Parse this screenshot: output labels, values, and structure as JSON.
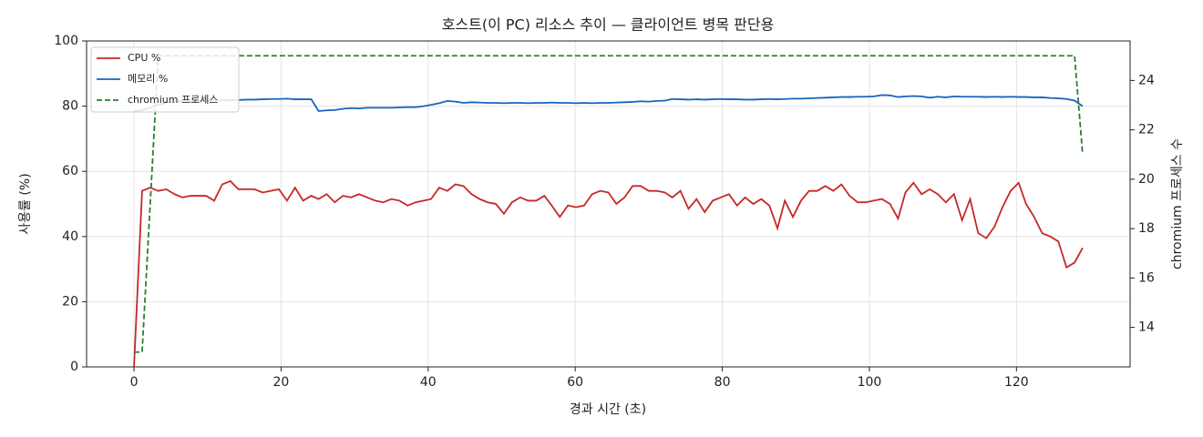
{
  "chart_data": {
    "type": "line",
    "title": "호스트(이 PC) 리소스 추이 — 클라이언트 병목 판단용",
    "xlabel": "경과 시간 (초)",
    "ylabel": "사용률 (%)",
    "y2label": "chromium 프로세스 수",
    "x": [
      0,
      1.1,
      2.2,
      3.3,
      4.4,
      5.5,
      6.6,
      7.7,
      8.7,
      9.8,
      10.9,
      12,
      13.1,
      14.2,
      15.3,
      16.4,
      17.5,
      18.6,
      19.7,
      20.8,
      21.9,
      23,
      24.1,
      25.1,
      26.2,
      27.3,
      28.4,
      29.5,
      30.6,
      31.7,
      32.8,
      33.9,
      35,
      36.1,
      37.2,
      38.3,
      39.4,
      40.4,
      41.5,
      42.6,
      43.7,
      44.8,
      45.9,
      47,
      48.1,
      49.2,
      50.3,
      51.4,
      52.5,
      53.6,
      54.7,
      55.8,
      56.8,
      57.9,
      59,
      60.1,
      61.2,
      62.3,
      63.4,
      64.5,
      65.6,
      66.7,
      67.8,
      68.9,
      70,
      71.1,
      72.2,
      73.2,
      74.3,
      75.4,
      76.5,
      77.6,
      78.7,
      79.8,
      80.9,
      82,
      83.1,
      84.2,
      85.3,
      86.4,
      87.5,
      88.5,
      89.6,
      90.7,
      91.8,
      92.9,
      94,
      95.1,
      96.2,
      97.3,
      98.4,
      99.5,
      100.6,
      101.7,
      102.8,
      103.9,
      104.9,
      106,
      107.1,
      108.2,
      109.3,
      110.4,
      111.5,
      112.6,
      113.7,
      114.8,
      115.9,
      117,
      118.1,
      119.2,
      120.3,
      121.3,
      122.4,
      123.5,
      124.6,
      125.7,
      126.8,
      127.9,
      129
    ],
    "series": [
      {
        "name": "CPU %",
        "color": "#c62828",
        "linestyle": "solid",
        "values": [
          0,
          54,
          55,
          54,
          54.5,
          53,
          52,
          52.5,
          52.5,
          52.5,
          51,
          56,
          57,
          54.5,
          54.5,
          54.5,
          53.5,
          54,
          54.5,
          51,
          55,
          51,
          52.5,
          51.5,
          53,
          50.5,
          52.5,
          52,
          53,
          52,
          51,
          50.5,
          51.5,
          51,
          49.5,
          50.5,
          51,
          51.5,
          55,
          54,
          56,
          55.5,
          53,
          51.5,
          50.5,
          50,
          47,
          50.5,
          52,
          51,
          51,
          52.5,
          49.5,
          46,
          49.5,
          49,
          49.5,
          53,
          54,
          53.5,
          50,
          52,
          55.5,
          55.5,
          54,
          54,
          53.5,
          52,
          54,
          48.5,
          51.5,
          47.5,
          51,
          52,
          53,
          49.5,
          52,
          50,
          51.5,
          49.5,
          42.5,
          51,
          46,
          51,
          54,
          54,
          55.5,
          54,
          56,
          52.5,
          50.5,
          50.5,
          51,
          51.5,
          50,
          45.5,
          53.5,
          56.5,
          53,
          54.5,
          53,
          50.5,
          53,
          45,
          51.5,
          41,
          39.5,
          43,
          49,
          54,
          56.5,
          50,
          46,
          41,
          40,
          38.5,
          30.5,
          32,
          36.5
        ]
      },
      {
        "name": "메모리 %",
        "color": "#1565c0",
        "linestyle": "solid",
        "values": [
          78.5,
          78.8,
          79.5,
          80.5,
          81,
          81.3,
          81.5,
          81.5,
          81.5,
          81.6,
          81.7,
          81.8,
          81.8,
          81.9,
          82,
          82,
          82.1,
          82.2,
          82.2,
          82.3,
          82.1,
          82.1,
          82.1,
          78.5,
          78.7,
          78.8,
          79.2,
          79.4,
          79.3,
          79.5,
          79.5,
          79.5,
          79.5,
          79.6,
          79.7,
          79.7,
          80,
          80.4,
          80.9,
          81.6,
          81.4,
          81,
          81.2,
          81.1,
          81,
          81,
          80.9,
          81,
          81,
          80.9,
          81,
          81,
          81.1,
          81,
          81,
          80.9,
          81,
          80.9,
          81,
          81,
          81.1,
          81.2,
          81.3,
          81.5,
          81.4,
          81.6,
          81.7,
          82.2,
          82.1,
          82,
          82.1,
          82,
          82.1,
          82.2,
          82.1,
          82.1,
          82,
          82,
          82.1,
          82.2,
          82.1,
          82.2,
          82.3,
          82.3,
          82.4,
          82.5,
          82.6,
          82.7,
          82.8,
          82.8,
          82.9,
          82.9,
          83,
          83.4,
          83.3,
          82.8,
          83,
          83.1,
          83,
          82.6,
          82.9,
          82.7,
          83,
          82.9,
          82.9,
          82.9,
          82.8,
          82.9,
          82.8,
          82.9,
          82.8,
          82.8,
          82.7,
          82.7,
          82.5,
          82.4,
          82.2,
          81.7,
          80
        ]
      },
      {
        "name": "chromium 프로세스",
        "color": "#2e7d32",
        "linestyle": "dashed",
        "axis": "y2",
        "values": [
          13,
          13,
          19,
          25,
          25,
          25,
          25,
          25,
          25,
          25,
          25,
          25,
          25,
          25,
          25,
          25,
          25,
          25,
          25,
          25,
          25,
          25,
          25,
          25,
          25,
          25,
          25,
          25,
          25,
          25,
          25,
          25,
          25,
          25,
          25,
          25,
          25,
          25,
          25,
          25,
          25,
          25,
          25,
          25,
          25,
          25,
          25,
          25,
          25,
          25,
          25,
          25,
          25,
          25,
          25,
          25,
          25,
          25,
          25,
          25,
          25,
          25,
          25,
          25,
          25,
          25,
          25,
          25,
          25,
          25,
          25,
          25,
          25,
          25,
          25,
          25,
          25,
          25,
          25,
          25,
          25,
          25,
          25,
          25,
          25,
          25,
          25,
          25,
          25,
          25,
          25,
          25,
          25,
          25,
          25,
          25,
          25,
          25,
          25,
          25,
          25,
          25,
          25,
          25,
          25,
          25,
          25,
          25,
          25,
          25,
          25,
          25,
          25,
          25,
          25,
          25,
          25,
          25,
          21
        ]
      }
    ],
    "xlim": [
      -6.45,
      135.45
    ],
    "xticks": [
      0,
      20,
      40,
      60,
      80,
      100,
      120
    ],
    "ylim": [
      0,
      100
    ],
    "yticks": [
      0,
      20,
      40,
      60,
      80,
      100
    ],
    "y2lim": [
      12.4,
      25.6
    ],
    "y2ticks": [
      14,
      16,
      18,
      20,
      22,
      24
    ],
    "grid": true,
    "legend": "upper-left"
  }
}
